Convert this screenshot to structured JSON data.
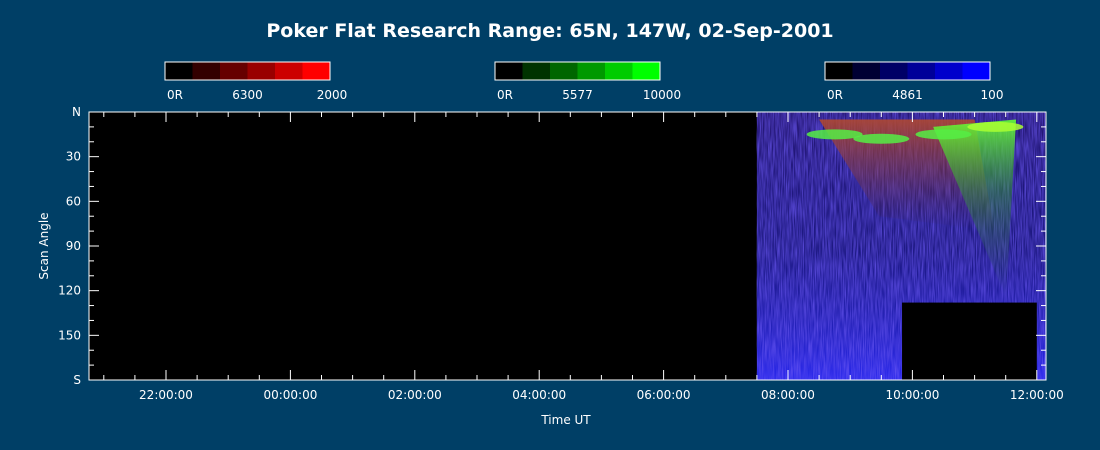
{
  "chart_data": {
    "type": "heatmap",
    "title": "Poker Flat Research Range: 65N, 147W, 02-Sep-2001",
    "xlabel": "Time UT",
    "ylabel": "Scan Angle",
    "x_ticks": [
      "22:00:00",
      "00:00:00",
      "02:00:00",
      "04:00:00",
      "06:00:00",
      "08:00:00",
      "10:00:00",
      "12:00:00"
    ],
    "y_ticks": [
      "N",
      "30",
      "60",
      "90",
      "120",
      "150",
      "S"
    ],
    "colorbars": [
      {
        "wavelength": "6300",
        "min_label": "0R",
        "max_label": "2000",
        "colors": [
          "#000000",
          "#330000",
          "#660000",
          "#990000",
          "#cc0000",
          "#ff0000"
        ]
      },
      {
        "wavelength": "5577",
        "min_label": "0R",
        "max_label": "10000",
        "colors": [
          "#000000",
          "#003300",
          "#006600",
          "#009900",
          "#00cc00",
          "#00ff00"
        ]
      },
      {
        "wavelength": "4861",
        "min_label": "0R",
        "max_label": "100",
        "colors": [
          "#000000",
          "#000033",
          "#000066",
          "#000099",
          "#0000cc",
          "#0000ff"
        ]
      }
    ],
    "data_start": "07:30:00",
    "data_end": "12:10:00",
    "data_gap": {
      "start": "09:50:00",
      "end": "12:00:00",
      "scan_from": 128,
      "scan_to": 180
    },
    "aurora_bands": [
      {
        "time": "08:45:00",
        "scan_angle": 15,
        "color": "green"
      },
      {
        "time": "09:30:00",
        "scan_angle": 18,
        "color": "green"
      },
      {
        "time": "10:30:00",
        "scan_angle": 15,
        "color": "green"
      },
      {
        "time": "11:20:00",
        "scan_angle": 10,
        "color": "yellow-green"
      }
    ],
    "colors": {
      "background": "#003f66",
      "plot_background": "#000000",
      "axis": "#ffffff"
    }
  }
}
